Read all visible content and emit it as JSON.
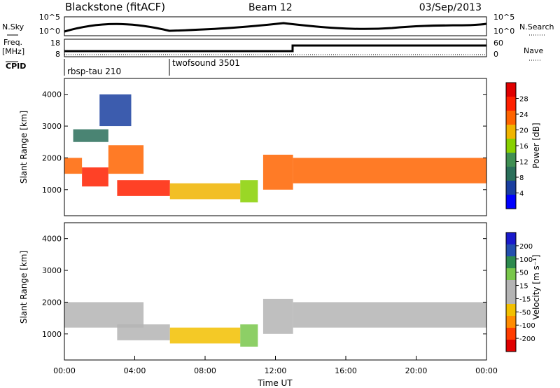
{
  "header": {
    "station": "Blackstone (fitACF)",
    "beam": "Beam 12",
    "date": "03/Sep/2013"
  },
  "panels": {
    "nsky": {
      "left_label": "N.Sky",
      "right_label": "N.Search",
      "ticks": [
        "10^5",
        "10^0"
      ]
    },
    "freq": {
      "left_label_top": "Freq.",
      "left_label_bottom": "[MHz]",
      "right_label": "Nave",
      "left_ticks": [
        "18",
        "8"
      ],
      "right_ticks": [
        "60",
        "0"
      ]
    },
    "cpid": {
      "label": "CPID",
      "segments": [
        {
          "name": "rbsp-tau 210",
          "start_hour": 0
        },
        {
          "name": "twofsound 3501",
          "start_hour": 6
        }
      ]
    }
  },
  "colors": {
    "power": [
      "#0000ff",
      "#1a3fa0",
      "#2a6f5a",
      "#3f8f52",
      "#88d000",
      "#f0b400",
      "#ff6400",
      "#ff2000",
      "#e00000"
    ],
    "velocity": [
      "#e00000",
      "#ff3c00",
      "#ff8c00",
      "#f2c000",
      "#b4b4b4",
      "#b4b4b4",
      "#79c74b",
      "#2c8a4e",
      "#234fae",
      "#1a1acc"
    ]
  },
  "chart_data": [
    {
      "type": "heatmap",
      "name": "power",
      "ylabel": "Slant Range [km]",
      "yticks": [
        "4000",
        "3000",
        "2000",
        "1000"
      ],
      "ylim": [
        180,
        4500
      ],
      "xlim": [
        0,
        24
      ],
      "colorbar_label": "Power [dB]",
      "colorbar_ticks": [
        "28",
        "24",
        "20",
        "16",
        "12",
        "8",
        "4"
      ],
      "colorbar_range": [
        0,
        30
      ],
      "bands": [
        {
          "start": 0.0,
          "end": 1.0,
          "range_low": 1500,
          "range_high": 2000,
          "value": 22
        },
        {
          "start": 1.0,
          "end": 2.5,
          "range_low": 1100,
          "range_high": 1700,
          "value": 26
        },
        {
          "start": 2.5,
          "end": 4.5,
          "range_low": 1500,
          "range_high": 2400,
          "value": 20
        },
        {
          "start": 0.5,
          "end": 2.5,
          "range_low": 2500,
          "range_high": 2900,
          "value": 8
        },
        {
          "start": 2.0,
          "end": 3.8,
          "range_low": 3000,
          "range_high": 4000,
          "value": 6
        },
        {
          "start": 3.0,
          "end": 6.0,
          "range_low": 800,
          "range_high": 1300,
          "value": 26
        },
        {
          "start": 6.0,
          "end": 10.0,
          "range_low": 700,
          "range_high": 1200,
          "value": 18
        },
        {
          "start": 10.0,
          "end": 11.0,
          "range_low": 600,
          "range_high": 1300,
          "value": 14
        },
        {
          "start": 11.3,
          "end": 13.0,
          "range_low": 1000,
          "range_high": 2100,
          "value": 22
        },
        {
          "start": 13.0,
          "end": 24.0,
          "range_low": 1200,
          "range_high": 2000,
          "value": 20
        }
      ]
    },
    {
      "type": "heatmap",
      "name": "velocity",
      "ylabel": "Slant Range [km]",
      "yticks": [
        "4000",
        "3000",
        "2000",
        "1000"
      ],
      "ylim": [
        180,
        4500
      ],
      "xlim": [
        0,
        24
      ],
      "xticks": [
        "00:00",
        "04:00",
        "08:00",
        "12:00",
        "16:00",
        "20:00",
        "00:00"
      ],
      "xlabel": "Time UT",
      "colorbar_label": "Velocity [m s⁻¹]",
      "colorbar_ticks": [
        "200",
        "100",
        "50",
        "15",
        "-15",
        "-50",
        "-100",
        "-200"
      ],
      "colorbar_range": [
        -250,
        250
      ],
      "bands": [
        {
          "start": 0.0,
          "end": 4.5,
          "range_low": 1200,
          "range_high": 2000,
          "value": 0
        },
        {
          "start": 3.0,
          "end": 6.0,
          "range_low": 800,
          "range_high": 1300,
          "value": 0
        },
        {
          "start": 6.0,
          "end": 10.0,
          "range_low": 700,
          "range_high": 1200,
          "value": -60
        },
        {
          "start": 10.0,
          "end": 11.0,
          "range_low": 600,
          "range_high": 1300,
          "value": 70
        },
        {
          "start": 11.3,
          "end": 13.0,
          "range_low": 1000,
          "range_high": 2100,
          "value": 30
        },
        {
          "start": 13.0,
          "end": 24.0,
          "range_low": 1200,
          "range_high": 2000,
          "value": 0
        }
      ]
    }
  ]
}
